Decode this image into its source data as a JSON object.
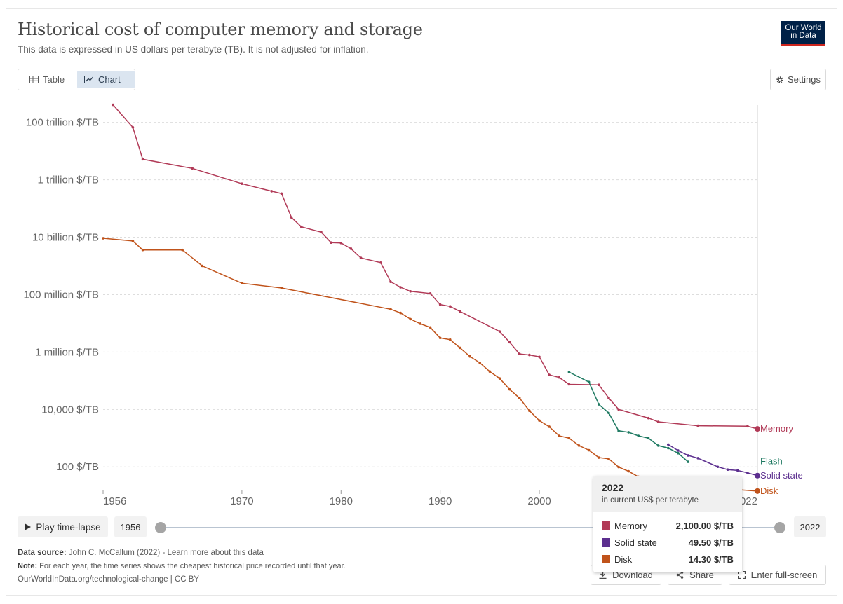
{
  "header": {
    "title": "Historical cost of computer memory and storage",
    "subtitle": "This data is expressed in US dollars per terabyte (TB). It is not adjusted for inflation.",
    "logo_line1": "Our World",
    "logo_line2": "in Data"
  },
  "controls": {
    "tab_table": "Table",
    "tab_chart": "Chart",
    "settings": "Settings",
    "play": "Play time-lapse",
    "start_year": "1956",
    "end_year": "2022",
    "download": "Download",
    "share": "Share",
    "fullscreen": "Enter full-screen"
  },
  "footer": {
    "source_label": "Data source:",
    "source_text": "John C. McCallum (2022) - ",
    "source_link": "Learn more about this data",
    "note_label": "Note:",
    "note_text": "For each year, the time series shows the cheapest historical price recorded until that year.",
    "credit": "OurWorldInData.org/technological-change | CC BY"
  },
  "tooltip": {
    "year": "2022",
    "subtitle": "in current US$ per terabyte",
    "rows": [
      {
        "name": "Memory",
        "value": "2,100.00 $/TB",
        "color": "#b13a57"
      },
      {
        "name": "Solid state",
        "value": "49.50 $/TB",
        "color": "#5c2f8f"
      },
      {
        "name": "Disk",
        "value": "14.30 $/TB",
        "color": "#c0531b"
      }
    ]
  },
  "colors": {
    "memory": "#b13a57",
    "flash": "#1f7a62",
    "solid_state": "#5c2f8f",
    "disk": "#c0531b"
  },
  "chart_data": {
    "type": "line",
    "yscale": "log",
    "xlim": [
      1956,
      2022
    ],
    "ylim": [
      15,
      400000000000000
    ],
    "yticks": [
      {
        "v": 100,
        "label": "100 $/TB"
      },
      {
        "v": 10000,
        "label": "10,000 $/TB"
      },
      {
        "v": 1000000,
        "label": "1 million $/TB"
      },
      {
        "v": 100000000,
        "label": "100 million $/TB"
      },
      {
        "v": 10000000000,
        "label": "10 billion $/TB"
      },
      {
        "v": 1000000000000,
        "label": "1 trillion $/TB"
      },
      {
        "v": 100000000000000,
        "label": "100 trillion $/TB"
      }
    ],
    "xticks": [
      {
        "v": 1956,
        "label": "1956"
      },
      {
        "v": 1970,
        "label": "1970"
      },
      {
        "v": 1980,
        "label": "1980"
      },
      {
        "v": 1990,
        "label": "1990"
      },
      {
        "v": 2000,
        "label": "2000"
      },
      {
        "v": 2022,
        "label": "2022"
      }
    ],
    "series": [
      {
        "name": "Memory",
        "color": "#b13a57",
        "points": [
          [
            1957,
            411000000000000
          ],
          [
            1959,
            67000000000000
          ],
          [
            1960,
            5200000000000
          ],
          [
            1965,
            2500000000000
          ],
          [
            1970,
            730000000000
          ],
          [
            1973,
            400000000000
          ],
          [
            1974,
            330000000000
          ],
          [
            1975,
            49000000000
          ],
          [
            1976,
            23000000000
          ],
          [
            1978,
            15000000000
          ],
          [
            1979,
            6500000000
          ],
          [
            1980,
            6300000000
          ],
          [
            1981,
            4000000000
          ],
          [
            1982,
            1900000000
          ],
          [
            1984,
            1300000000
          ],
          [
            1985,
            280000000
          ],
          [
            1986,
            180000000
          ],
          [
            1987,
            130000000
          ],
          [
            1989,
            110000000
          ],
          [
            1990,
            45000000
          ],
          [
            1991,
            39000000
          ],
          [
            1992,
            26000000
          ],
          [
            1996,
            5200000
          ],
          [
            1997,
            2200000
          ],
          [
            1998,
            860000
          ],
          [
            1999,
            790000
          ],
          [
            2000,
            680000
          ],
          [
            2001,
            160000
          ],
          [
            2002,
            130000
          ],
          [
            2003,
            75000
          ],
          [
            2006,
            72000
          ],
          [
            2007,
            25000
          ],
          [
            2008,
            10000
          ],
          [
            2011,
            5000
          ],
          [
            2012,
            3700
          ],
          [
            2016,
            2700
          ],
          [
            2021,
            2600
          ],
          [
            2022,
            2100
          ]
        ]
      },
      {
        "name": "Flash",
        "color": "#1f7a62",
        "points": [
          [
            2003,
            200000
          ],
          [
            2005,
            90000
          ],
          [
            2006,
            15000
          ],
          [
            2007,
            7500
          ],
          [
            2008,
            1800
          ],
          [
            2009,
            1600
          ],
          [
            2010,
            1200
          ],
          [
            2011,
            1000
          ],
          [
            2012,
            550
          ],
          [
            2013,
            450
          ],
          [
            2014,
            300
          ],
          [
            2015,
            150
          ]
        ]
      },
      {
        "name": "Solid state",
        "color": "#5c2f8f",
        "points": [
          [
            2013,
            600
          ],
          [
            2014,
            370
          ],
          [
            2015,
            250
          ],
          [
            2016,
            200
          ],
          [
            2018,
            100
          ],
          [
            2019,
            80
          ],
          [
            2020,
            75
          ],
          [
            2021,
            62
          ],
          [
            2022,
            49.5
          ]
        ]
      },
      {
        "name": "Disk",
        "color": "#c0531b",
        "points": [
          [
            1956,
            9200000000
          ],
          [
            1959,
            7400000000
          ],
          [
            1960,
            3600000000
          ],
          [
            1964,
            3600000000
          ],
          [
            1966,
            1000000000
          ],
          [
            1970,
            250000000
          ],
          [
            1974,
            170000000
          ],
          [
            1985,
            31000000
          ],
          [
            1986,
            23000000
          ],
          [
            1987,
            14000000
          ],
          [
            1988,
            9700000
          ],
          [
            1989,
            7200000
          ],
          [
            1990,
            3100000
          ],
          [
            1991,
            2700000
          ],
          [
            1992,
            1400000
          ],
          [
            1993,
            700000
          ],
          [
            1994,
            420000
          ],
          [
            1995,
            210000
          ],
          [
            1996,
            120000
          ],
          [
            1997,
            50000
          ],
          [
            1998,
            25000
          ],
          [
            1999,
            9000
          ],
          [
            2000,
            4100
          ],
          [
            2001,
            2500
          ],
          [
            2002,
            1200
          ],
          [
            2003,
            1000
          ],
          [
            2004,
            550
          ],
          [
            2005,
            380
          ],
          [
            2006,
            210
          ],
          [
            2007,
            190
          ],
          [
            2008,
            98
          ],
          [
            2009,
            70
          ],
          [
            2010,
            45
          ],
          [
            2011,
            36
          ],
          [
            2017,
            22
          ],
          [
            2018,
            18
          ],
          [
            2019,
            17
          ],
          [
            2020,
            16
          ],
          [
            2022,
            14.3
          ]
        ]
      }
    ],
    "end_labels": [
      {
        "name": "Memory",
        "color": "#b13a57",
        "y": 2100
      },
      {
        "name": "Flash",
        "color": "#1f7a62",
        "y": 155
      },
      {
        "name": "Solid state",
        "color": "#5c2f8f",
        "y": 49.5
      },
      {
        "name": "Disk",
        "color": "#c0531b",
        "y": 14.3
      }
    ]
  }
}
